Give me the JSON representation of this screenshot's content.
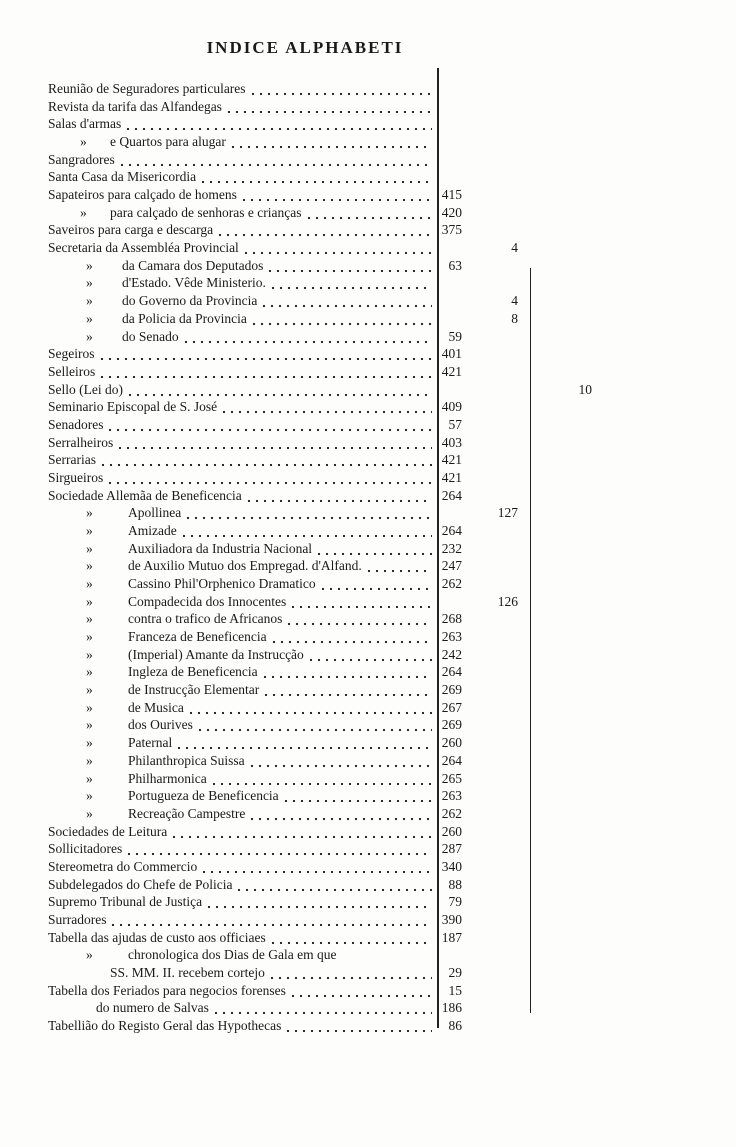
{
  "header": {
    "title": "INDICE ALPHABETI"
  },
  "entries": [
    {
      "text": "Reunião de Seguradores particulares"
    },
    {
      "text": "Revista da tarifa das Alfandegas"
    },
    {
      "text": "Salas d'armas"
    },
    {
      "mark": "»",
      "text": "e Quartos para alugar"
    },
    {
      "text": "Sangradores"
    },
    {
      "text": "Santa Casa da Misericordia"
    },
    {
      "text": "Sapateiros para calçado de homens",
      "ref": 415
    },
    {
      "mark": "»",
      "text": "para calçado de senhoras e crianças",
      "ref": 420
    },
    {
      "text": "Saveiros para carga e descarga",
      "ref": 375
    },
    {
      "text": "Secretaria da Assembléa Provincial",
      "ref_b": 4
    },
    {
      "mark": "»",
      "text": "da Camara dos Deputados",
      "ref": 63
    },
    {
      "mark": "»",
      "text": "d'Estado. Vêde Ministerio."
    },
    {
      "mark": "»",
      "text": "do Governo da Provincia",
      "ref_b": 4
    },
    {
      "mark": "»",
      "text": "da Policia da Provincia",
      "ref_b": 8
    },
    {
      "mark": "»",
      "text": "do Senado",
      "ref": 59
    },
    {
      "text": "Segeiros",
      "ref": 401
    },
    {
      "text": "Selleiros",
      "ref": 421
    },
    {
      "text": "Sello (Lei do)",
      "ref_c": 10
    },
    {
      "text": "Seminario Episcopal de S. José",
      "ref": 409
    },
    {
      "text": "Senadores",
      "ref": 57
    },
    {
      "text": "Serralheiros",
      "ref": 403
    },
    {
      "text": "Serrarias",
      "ref": 421
    },
    {
      "text": "Sirgueiros",
      "ref": 421
    },
    {
      "text": "Sociedade Allemãa de Beneficencia",
      "ref": 264
    },
    {
      "mark": "»",
      "text": "Apollinea",
      "ref_b": 127
    },
    {
      "mark": "»",
      "text": "Amizade",
      "ref": 264
    },
    {
      "mark": "»",
      "text": "Auxiliadora da Industria Nacional",
      "ref": 232
    },
    {
      "mark": "»",
      "text": "de Auxilio Mutuo dos Empregad. d'Alfand.",
      "ref": 247
    },
    {
      "mark": "»",
      "text": "Cassino Phil'Orphenico Dramatico",
      "ref": 262
    },
    {
      "mark": "»",
      "text": "Compadecida dos Innocentes",
      "ref_b": 126
    },
    {
      "mark": "»",
      "text": "contra o trafico de Africanos",
      "ref": 268
    },
    {
      "mark": "»",
      "text": "Franceza de Beneficencia",
      "ref": 263
    },
    {
      "mark": "»",
      "text": "(Imperial) Amante da Instrucção",
      "ref": 242
    },
    {
      "mark": "»",
      "text": "Ingleza de Beneficencia",
      "ref": 264
    },
    {
      "mark": "»",
      "text": "de Instrucção Elementar",
      "ref": 269
    },
    {
      "mark": "»",
      "text": "de Musica",
      "ref": 267
    },
    {
      "mark": "»",
      "text": "dos Ourives",
      "ref": 269
    },
    {
      "mark": "»",
      "text": "Paternal",
      "ref": 260
    },
    {
      "mark": "»",
      "text": "Philanthropica Suissa",
      "ref": 264
    },
    {
      "mark": "»",
      "text": "Philharmonica",
      "ref": 265
    },
    {
      "mark": "»",
      "text": "Portugueza de Beneficencia",
      "ref": 263
    },
    {
      "mark": "»",
      "text": "Recreação Campestre",
      "ref": 262
    },
    {
      "text": "Sociedades de Leitura",
      "ref": 260
    },
    {
      "text": "Sollicitadores",
      "ref": 287
    },
    {
      "text": "Stereometra do Commercio",
      "ref": 340
    },
    {
      "text": "Subdelegados do Chefe de Policia",
      "ref": 88
    },
    {
      "text": "Supremo Tribunal de Justiça",
      "ref": 79
    },
    {
      "text": "Surradores",
      "ref": 390
    },
    {
      "text": "Tabella das ajudas de custo aos officiaes",
      "ref": 187
    },
    {
      "mark": "»",
      "text": "chronologica dos Dias de Gala em que"
    },
    {
      "text": "SS. MM. II. recebem cortejo",
      "ref": 29
    },
    {
      "text": "Tabella dos Feriados para negocios forenses",
      "ref": 15
    },
    {
      "text": "do numero de Salvas",
      "ref": 186
    },
    {
      "text": "Tabellião do Registo Geral das Hypothecas",
      "ref": 86
    }
  ]
}
